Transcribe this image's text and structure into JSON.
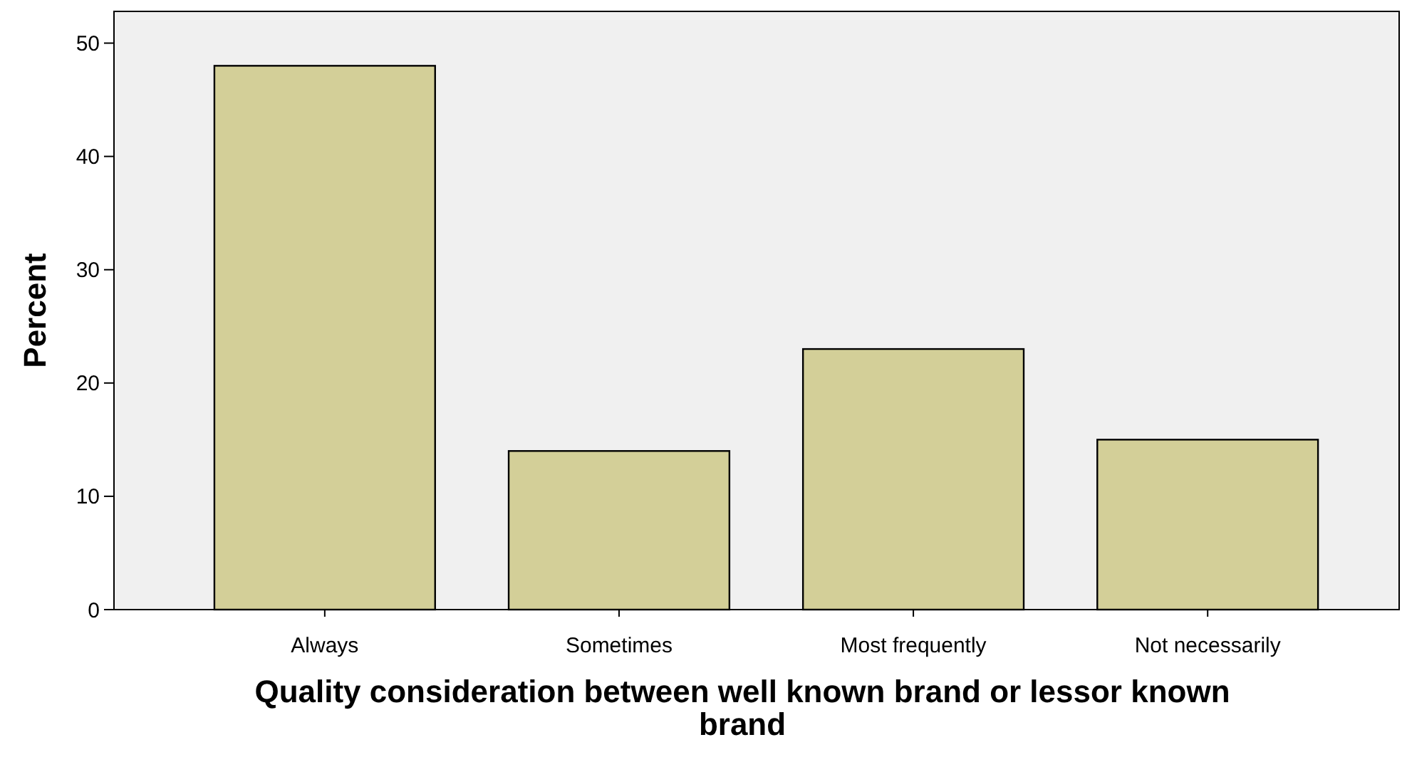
{
  "chart_data": {
    "type": "bar",
    "xlabel": "Quality consideration between well known brand or lessor known brand",
    "ylabel": "Percent",
    "categories": [
      "Always",
      "Sometimes",
      "Most frequently",
      "Not necessarily"
    ],
    "values": [
      48,
      14,
      23,
      15
    ],
    "color": "#d3cf98",
    "ylim": [
      0,
      52.8
    ],
    "yticks": [
      0,
      10,
      20,
      30,
      40,
      50
    ],
    "grid": false
  }
}
